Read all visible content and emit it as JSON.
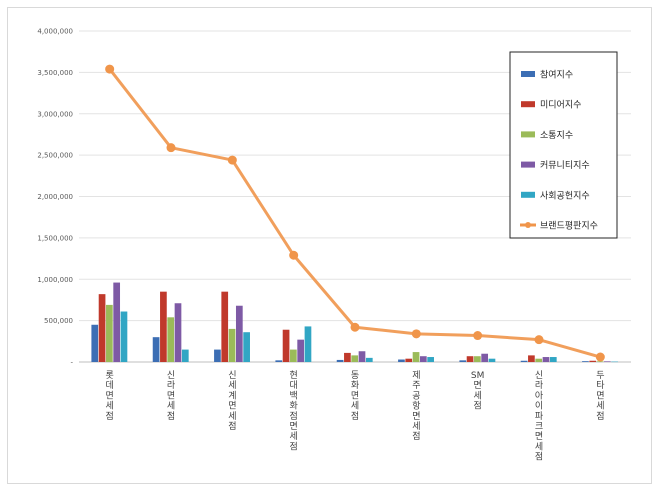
{
  "chart_data": {
    "type": "bar",
    "title": "",
    "xlabel": "",
    "ylabel": "",
    "ylim": [
      0,
      4000000
    ],
    "yticks": [
      0,
      500000,
      1000000,
      1500000,
      2000000,
      2500000,
      3000000,
      3500000,
      4000000
    ],
    "ytick_labels": [
      "-",
      "500,000",
      "1,000,000",
      "1,500,000",
      "2,000,000",
      "2,500,000",
      "3,000,000",
      "3,500,000",
      "4,000,000"
    ],
    "grid": true,
    "legend_position": "top-right",
    "categories": [
      "롯데면세점",
      "신라면세점",
      "신세계면세점",
      "현대백화점면세점",
      "동화면세점",
      "제주공항면세점",
      "SM면세점",
      "신라아이파크면세점",
      "두타면세점"
    ],
    "series": [
      {
        "name": "참여지수",
        "kind": "bar",
        "color": "#3c6eb4",
        "values": [
          450000,
          300000,
          150000,
          20000,
          25000,
          30000,
          20000,
          15000,
          10000
        ]
      },
      {
        "name": "미디어지수",
        "kind": "bar",
        "color": "#c0392b",
        "values": [
          820000,
          850000,
          850000,
          390000,
          110000,
          40000,
          70000,
          80000,
          15000
        ]
      },
      {
        "name": "소통지수",
        "kind": "bar",
        "color": "#9bbb59",
        "values": [
          690000,
          540000,
          400000,
          150000,
          80000,
          120000,
          70000,
          40000,
          8000
        ]
      },
      {
        "name": "커뮤니티지수",
        "kind": "bar",
        "color": "#7e5aa5",
        "values": [
          960000,
          710000,
          680000,
          270000,
          130000,
          70000,
          100000,
          60000,
          8000
        ]
      },
      {
        "name": "사회공헌지수",
        "kind": "bar",
        "color": "#31a6c4",
        "values": [
          610000,
          150000,
          360000,
          430000,
          50000,
          60000,
          40000,
          60000,
          5000
        ]
      },
      {
        "name": "브랜드평판지수",
        "kind": "line",
        "color": "#f0954a",
        "values": [
          3540000,
          2590000,
          2440000,
          1290000,
          420000,
          340000,
          320000,
          270000,
          60000
        ]
      }
    ]
  }
}
